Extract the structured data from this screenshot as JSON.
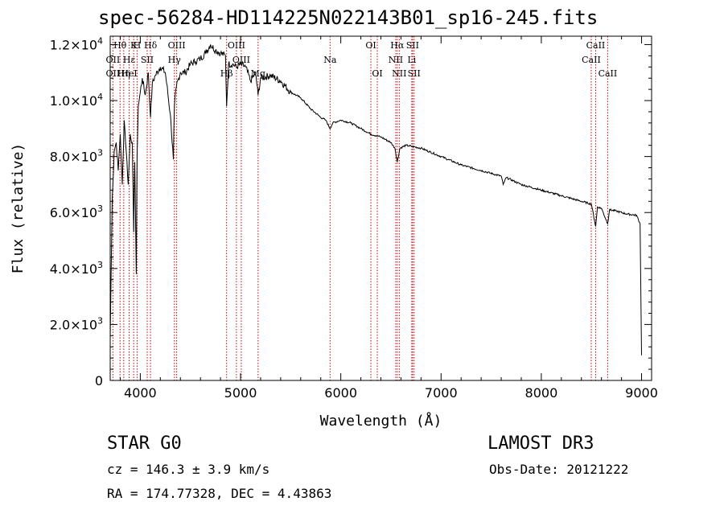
{
  "chart_data": {
    "type": "line",
    "title": "spec-56284-HD114225N022143B01_sp16-245.fits",
    "xlabel": "Wavelength (Å)",
    "ylabel": "Flux (relative)",
    "xlim": [
      3700,
      9100
    ],
    "ylim": [
      0,
      12300
    ],
    "x_ticks": [
      4000,
      5000,
      6000,
      7000,
      8000,
      9000
    ],
    "x_tick_labels": [
      "4000",
      "5000",
      "6000",
      "7000",
      "8000",
      "9000"
    ],
    "y_ticks": [
      0,
      2000,
      4000,
      6000,
      8000,
      10000,
      12000
    ],
    "y_tick_labels": [
      {
        "mant": "0",
        "exp": ""
      },
      {
        "mant": "2.0×10",
        "exp": "3"
      },
      {
        "mant": "4.0×10",
        "exp": "3"
      },
      {
        "mant": "6.0×10",
        "exp": "3"
      },
      {
        "mant": "8.0×10",
        "exp": "3"
      },
      {
        "mant": "1.0×10",
        "exp": "4"
      },
      {
        "mant": "1.2×10",
        "exp": "4"
      }
    ],
    "series": [
      {
        "name": "flux",
        "x": [
          3700,
          3720,
          3740,
          3760,
          3780,
          3800,
          3820,
          3840,
          3860,
          3880,
          3900,
          3920,
          3934,
          3945,
          3960,
          3968,
          3980,
          4000,
          4020,
          4050,
          4080,
          4102,
          4120,
          4150,
          4200,
          4250,
          4300,
          4330,
          4340,
          4360,
          4400,
          4450,
          4500,
          4550,
          4600,
          4650,
          4700,
          4750,
          4800,
          4850,
          4861,
          4880,
          4920,
          4960,
          5000,
          5050,
          5100,
          5150,
          5175,
          5200,
          5300,
          5400,
          5500,
          5600,
          5700,
          5800,
          5850,
          5893,
          5920,
          6000,
          6100,
          6200,
          6300,
          6400,
          6500,
          6540,
          6563,
          6590,
          6650,
          6800,
          7000,
          7200,
          7400,
          7600,
          7620,
          7650,
          7800,
          8000,
          8200,
          8400,
          8500,
          8542,
          8560,
          8600,
          8662,
          8680,
          8750,
          8850,
          8950,
          8985,
          9000
        ],
        "y": [
          1500,
          6500,
          8200,
          8500,
          7500,
          8800,
          7000,
          9300,
          8200,
          7000,
          8800,
          8500,
          5300,
          7800,
          3800,
          8000,
          9800,
          10300,
          10800,
          10200,
          11000,
          9400,
          10600,
          10900,
          11200,
          11000,
          9500,
          7900,
          9800,
          10500,
          11000,
          11000,
          11300,
          11400,
          11500,
          11700,
          12000,
          11800,
          11700,
          11600,
          9800,
          11300,
          11300,
          11200,
          11300,
          11200,
          10700,
          11000,
          10200,
          10800,
          10900,
          10700,
          10300,
          10100,
          9700,
          9400,
          9300,
          9000,
          9200,
          9300,
          9200,
          9000,
          8800,
          8700,
          8500,
          8300,
          7800,
          8300,
          8400,
          8300,
          8000,
          7700,
          7500,
          7300,
          7000,
          7250,
          7000,
          6800,
          6600,
          6400,
          6300,
          5500,
          6200,
          6150,
          5600,
          6100,
          6050,
          5950,
          5900,
          5600,
          900
        ]
      }
    ],
    "line_labels": [
      {
        "text": "Hθ",
        "x": 3798,
        "row": 0
      },
      {
        "text": "OII",
        "x": 3727,
        "row": 1
      },
      {
        "text": "OII",
        "x": 3727,
        "row": 2
      },
      {
        "text": "K",
        "x": 3934,
        "row": 0
      },
      {
        "text": "H",
        "x": 3968,
        "row": 0
      },
      {
        "text": "Hε",
        "x": 3889,
        "row": 1
      },
      {
        "text": "Hη",
        "x": 3835,
        "row": 2
      },
      {
        "text": "HeI",
        "x": 3889,
        "row": 2
      },
      {
        "text": "Hδ",
        "x": 4102,
        "row": 0
      },
      {
        "text": "SII",
        "x": 4069,
        "row": 1
      },
      {
        "text": "OIII",
        "x": 4363,
        "row": 0
      },
      {
        "text": "Hγ",
        "x": 4340,
        "row": 1
      },
      {
        "text": "OIII",
        "x": 4959,
        "row": 0
      },
      {
        "text": "OIII",
        "x": 5007,
        "row": 1
      },
      {
        "text": "Hβ",
        "x": 4861,
        "row": 2
      },
      {
        "text": "Mg",
        "x": 5175,
        "row": 2
      },
      {
        "text": "Na",
        "x": 5893,
        "row": 1
      },
      {
        "text": "OI",
        "x": 6300,
        "row": 0
      },
      {
        "text": "OI",
        "x": 6364,
        "row": 2
      },
      {
        "text": "Hα",
        "x": 6563,
        "row": 0
      },
      {
        "text": "NII",
        "x": 6548,
        "row": 1
      },
      {
        "text": "NII",
        "x": 6583,
        "row": 2
      },
      {
        "text": "SII",
        "x": 6716,
        "row": 0
      },
      {
        "text": "SII",
        "x": 6731,
        "row": 2
      },
      {
        "text": "Li",
        "x": 6708,
        "row": 1
      },
      {
        "text": "CaII",
        "x": 8542,
        "row": 0
      },
      {
        "text": "CaII",
        "x": 8498,
        "row": 1
      },
      {
        "text": "CaII",
        "x": 8662,
        "row": 2
      }
    ],
    "line_positions": [
      3727,
      3798,
      3835,
      3889,
      3934,
      3968,
      4069,
      4102,
      4340,
      4363,
      4861,
      4959,
      5007,
      5175,
      5893,
      6300,
      6364,
      6548,
      6563,
      6583,
      6708,
      6716,
      6731,
      8498,
      8542,
      8662
    ],
    "line_color": "#cc0000"
  },
  "info": {
    "object": "STAR    G0",
    "survey": "LAMOST DR3",
    "cz": "cz = 146.3 ± 3.9 km/s",
    "obs_date": "Obs-Date: 20121222",
    "coords": "RA = 174.77328, DEC =   4.43863"
  }
}
